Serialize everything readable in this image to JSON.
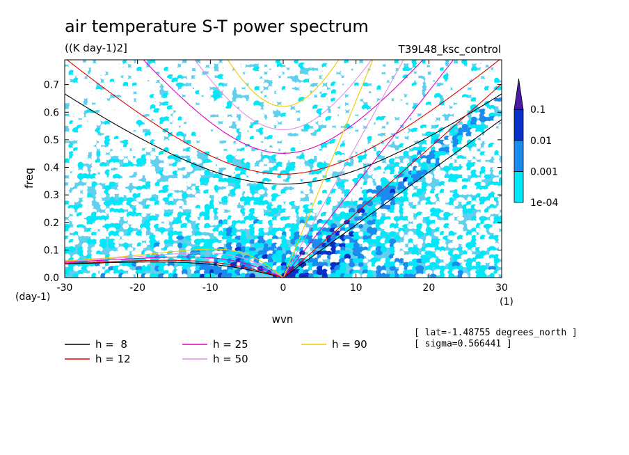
{
  "title": "air temperature S-T power spectrum",
  "units": "((K day-1)2]",
  "experiment": "T39L48_ksc_control",
  "info": [
    "[ lat=-1.48755 degrees_north ]",
    "[ sigma=0.566441 ]"
  ],
  "x_unit_note": "(1)",
  "y_unit_note": "(day-1)",
  "chart_data": {
    "type": "heatmap",
    "title": "air temperature S-T power spectrum",
    "xlabel": "wvn",
    "ylabel": "freq",
    "xlim": [
      -30,
      30
    ],
    "ylim": [
      0,
      0.79
    ],
    "x_ticks": [
      -30,
      -20,
      -10,
      0,
      10,
      20,
      30
    ],
    "x_tick_labels": [
      "-30",
      "-20",
      "-10",
      "0",
      "10",
      "20",
      "30"
    ],
    "y_ticks": [
      0,
      0.1,
      0.2,
      0.3,
      0.4,
      0.5,
      0.6,
      0.7
    ],
    "y_tick_labels": [
      "0.0",
      "0.1",
      "0.2",
      "0.3",
      "0.4",
      "0.5",
      "0.6",
      "0.7"
    ],
    "levels": [
      0.0001,
      0.001,
      0.01,
      0.1
    ],
    "colorbar_labels": [
      "1e-04",
      "0.001",
      "0.01",
      "0.1"
    ],
    "colorbar_colors": [
      "#00e8f8",
      "#1a8cf0",
      "#0a2ec8",
      "#4a1aa0"
    ],
    "background_color": "#60d0ee",
    "grid": false,
    "dispersion_curves": [
      {
        "name": "h =  8",
        "h": 8,
        "color": "#000000"
      },
      {
        "name": "h = 12",
        "h": 12,
        "color": "#e00000"
      },
      {
        "name": "h = 25",
        "h": 25,
        "color": "#e000c0"
      },
      {
        "name": "h = 50",
        "h": 50,
        "color": "#e090e0"
      },
      {
        "name": "h = 90",
        "h": 90,
        "color": "#f0c800"
      }
    ]
  }
}
